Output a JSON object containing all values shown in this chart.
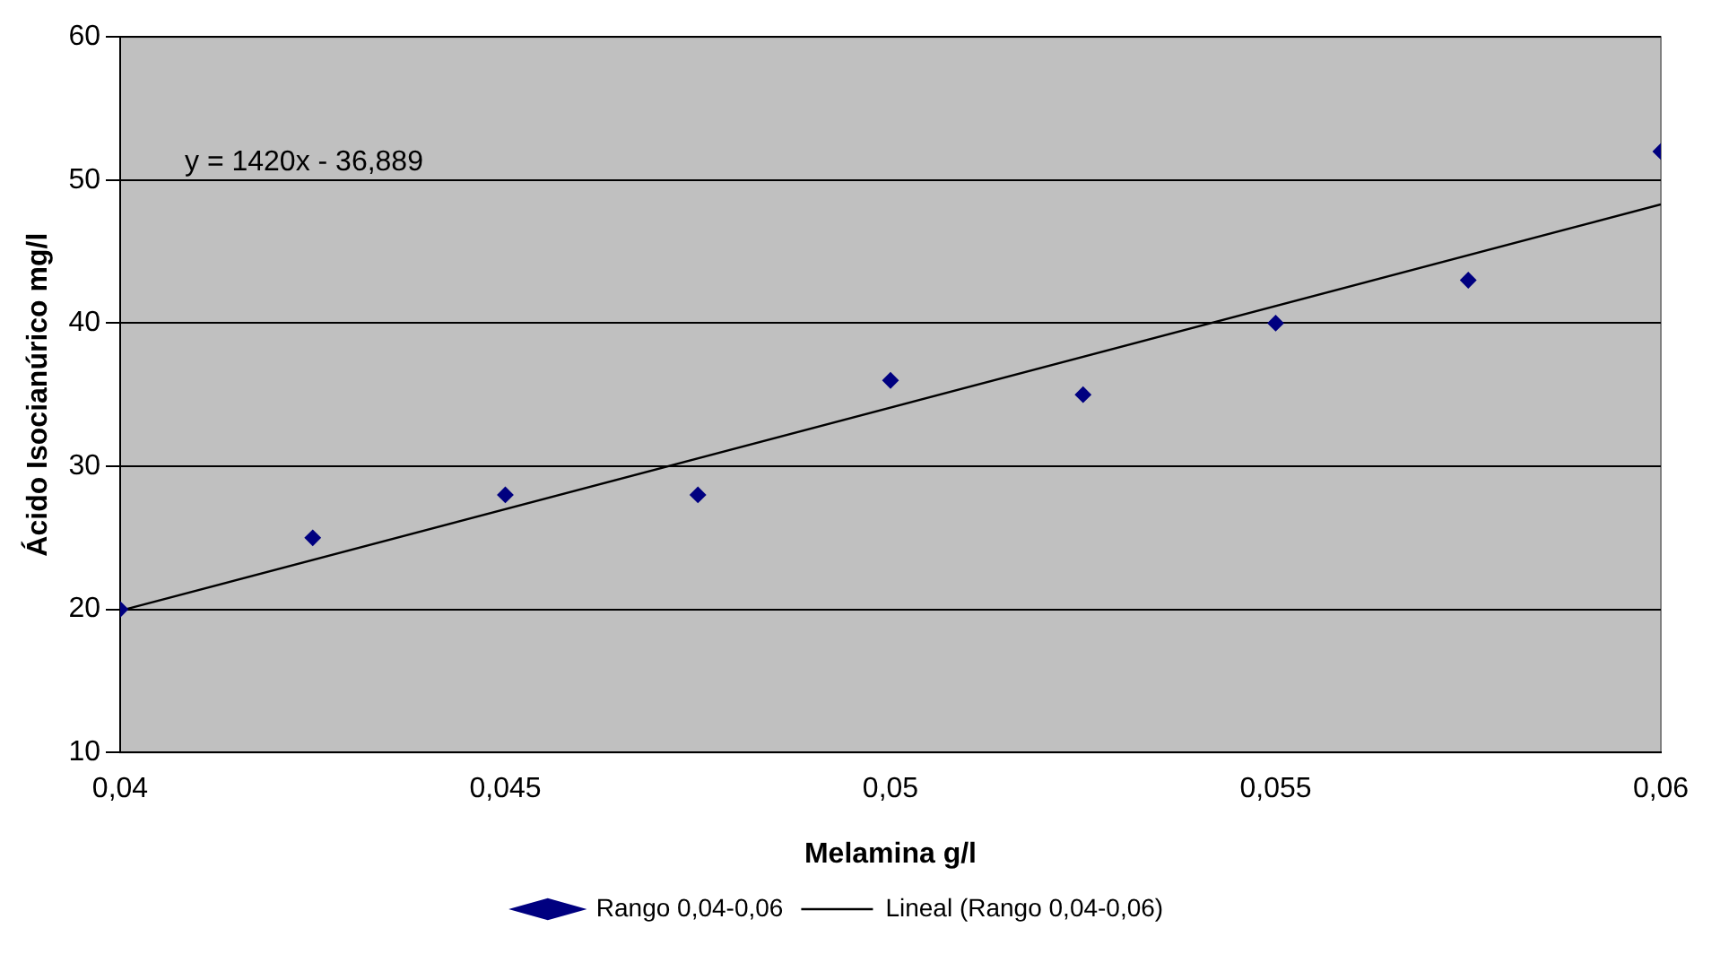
{
  "chart_data": {
    "type": "scatter",
    "xlabel": "Melamina g/l",
    "ylabel": "Ácido Isocianúrico mg/l",
    "annotations": [
      "y = 1420x - 36,889"
    ],
    "xlim": [
      0.04,
      0.06
    ],
    "xticks": [
      {
        "value": 0.04,
        "label": "0,04"
      },
      {
        "value": 0.045,
        "label": "0,045"
      },
      {
        "value": 0.05,
        "label": "0,05"
      },
      {
        "value": 0.055,
        "label": "0,055"
      },
      {
        "value": 0.06,
        "label": "0,06"
      }
    ],
    "ylim": [
      10,
      60
    ],
    "yticks": [
      10,
      20,
      30,
      40,
      50,
      60
    ],
    "grid": "y",
    "legend": "bottom",
    "marker": "diamond",
    "series": [
      {
        "name": "Rango 0,04-0,06",
        "color": "#000080",
        "x": [
          0.04,
          0.0425,
          0.045,
          0.0475,
          0.05,
          0.0525,
          0.055,
          0.0575,
          0.06
        ],
        "values": [
          20,
          25,
          28,
          28,
          36,
          35,
          40,
          43,
          52
        ]
      },
      {
        "name": "Lineal (Rango 0,04-0,06)",
        "type": "line",
        "color": "#000000",
        "marker": "none",
        "x": [
          0.04,
          0.06
        ],
        "values": [
          19.9,
          48.3
        ]
      }
    ]
  }
}
